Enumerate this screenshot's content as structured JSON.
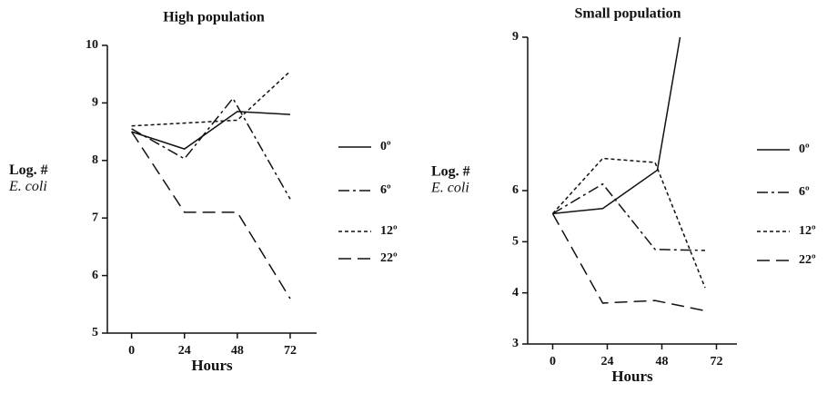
{
  "chart_data": [
    {
      "type": "line",
      "title": "High population",
      "x_label": "Hours",
      "y_label": [
        "Log. #",
        "E. coli"
      ],
      "xlim": [
        -11,
        84
      ],
      "xticks": [
        0,
        24,
        48,
        72
      ],
      "ylim": [
        5,
        10
      ],
      "yticks": [
        5,
        6,
        7,
        8,
        9,
        10
      ],
      "series": [
        {
          "name": "0º",
          "color": "#111",
          "dash": "solid",
          "x": [
            0,
            24,
            48,
            72
          ],
          "values": [
            8.5,
            8.2,
            8.85,
            8.8
          ]
        },
        {
          "name": "6º",
          "color": "#111",
          "dash": "dashdot",
          "x": [
            0,
            24,
            46,
            72
          ],
          "values": [
            8.55,
            8.03,
            9.08,
            7.33
          ]
        },
        {
          "name": "12º",
          "color": "#111",
          "dash": "dotted",
          "x": [
            0,
            24,
            48,
            72
          ],
          "values": [
            8.6,
            8.65,
            8.7,
            9.55
          ]
        },
        {
          "name": "22º",
          "color": "#111",
          "dash": "dashed",
          "x": [
            0,
            24,
            48,
            72
          ],
          "values": [
            8.5,
            7.1,
            7.1,
            5.6
          ]
        }
      ]
    },
    {
      "type": "line",
      "title": "Small population",
      "x_label": "Hours",
      "y_label": [
        "Log. #",
        "E. coli"
      ],
      "xlim": [
        -11,
        81
      ],
      "xticks": [
        0,
        24,
        48,
        72
      ],
      "ylim": [
        3,
        9
      ],
      "yticks": [
        3,
        4,
        5,
        6,
        9
      ],
      "series": [
        {
          "name": "0º",
          "color": "#111",
          "dash": "solid",
          "x": [
            0,
            22,
            46,
            56
          ],
          "values": [
            5.55,
            5.65,
            6.4,
            9
          ]
        },
        {
          "name": "6º",
          "color": "#111",
          "dash": "dashdot",
          "x": [
            0,
            22,
            45,
            67
          ],
          "values": [
            5.55,
            6.13,
            4.85,
            4.83
          ]
        },
        {
          "name": "12º",
          "color": "#111",
          "dash": "dotted",
          "x": [
            0,
            22,
            45,
            67
          ],
          "values": [
            5.55,
            6.63,
            6.55,
            4.1
          ]
        },
        {
          "name": "22º",
          "color": "#111",
          "dash": "dashed",
          "x": [
            0,
            22,
            45,
            67
          ],
          "values": [
            5.55,
            3.8,
            3.85,
            3.65
          ]
        }
      ]
    }
  ]
}
